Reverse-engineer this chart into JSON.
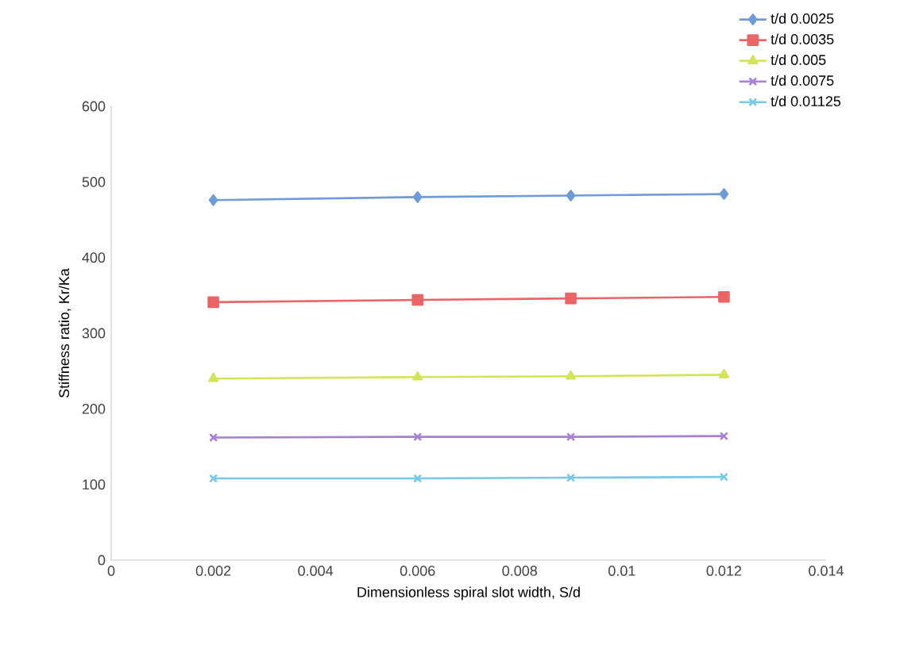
{
  "chart_data": {
    "type": "line",
    "xlabel": "Dimensionless spiral slot width, S/d",
    "ylabel": "Stiffness ratio, Kr/Ka",
    "x": [
      0.002,
      0.006,
      0.009,
      0.012
    ],
    "series": [
      {
        "name": "t/d 0.0025",
        "color": "#6f9bd8",
        "marker": "diamond",
        "values": [
          476,
          480,
          482,
          484
        ]
      },
      {
        "name": "t/d 0.0035",
        "color": "#eb6466",
        "marker": "square",
        "values": [
          341,
          344,
          346,
          348
        ]
      },
      {
        "name": "t/d 0.005",
        "color": "#d4e45a",
        "marker": "triangle",
        "values": [
          240,
          242,
          243,
          245
        ]
      },
      {
        "name": "t/d 0.0075",
        "color": "#a77fd6",
        "marker": "cross",
        "values": [
          162,
          163,
          163,
          164
        ]
      },
      {
        "name": "t/d 0.01125",
        "color": "#79c8e6",
        "marker": "cross",
        "values": [
          108,
          108,
          109,
          110
        ]
      }
    ],
    "xlim": [
      0,
      0.014
    ],
    "xticks": [
      0,
      0.002,
      0.004,
      0.006,
      0.008,
      0.01,
      0.012,
      0.014
    ],
    "ylim": [
      0,
      600
    ],
    "yticks": [
      0,
      100,
      200,
      300,
      400,
      500,
      600
    ],
    "grid": false,
    "legend": "top right",
    "line_style": "solid"
  }
}
